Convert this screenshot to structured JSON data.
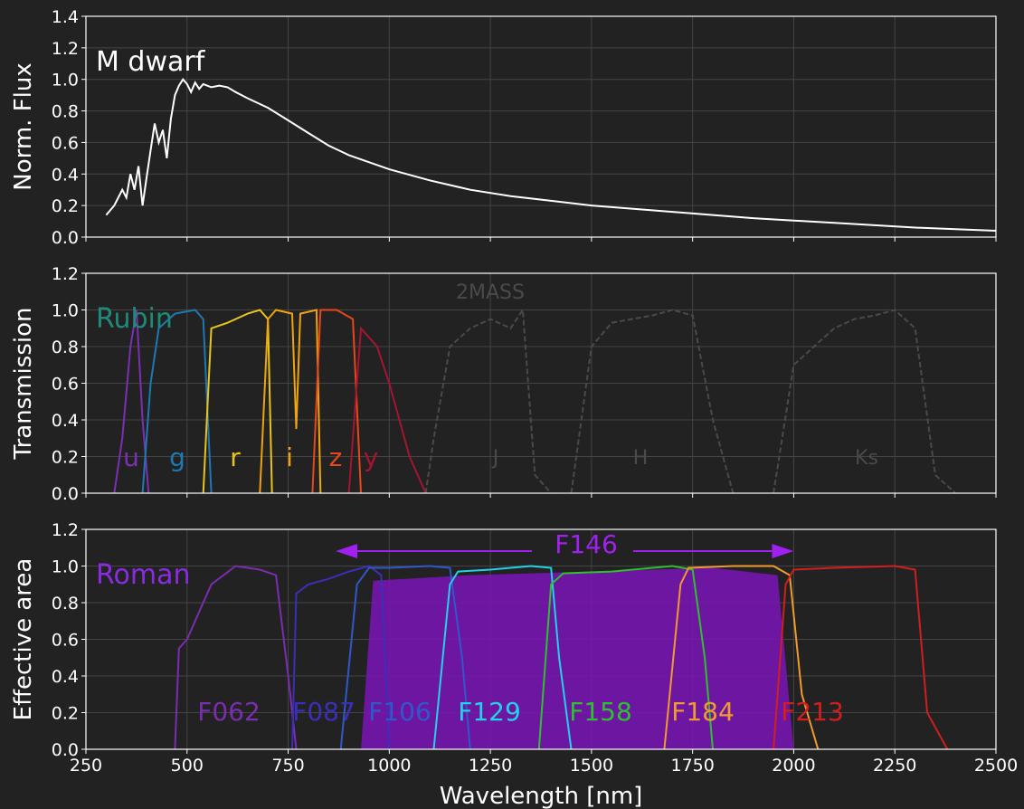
{
  "chart_data": [
    {
      "type": "line",
      "title": "M dwarf",
      "xlabel": "",
      "ylabel": "Norm. Flux",
      "xlim": [
        250,
        2500
      ],
      "ylim": [
        0,
        1.4
      ],
      "yticks": [
        "0.0",
        "0.2",
        "0.4",
        "0.6",
        "0.8",
        "1.0",
        "1.2",
        "1.4"
      ],
      "grid": true,
      "series": [
        {
          "color": "#ffffff",
          "x": [
            300,
            320,
            340,
            350,
            360,
            370,
            380,
            390,
            400,
            410,
            420,
            430,
            440,
            450,
            460,
            470,
            480,
            490,
            500,
            510,
            520,
            530,
            540,
            560,
            580,
            600,
            620,
            650,
            700,
            750,
            800,
            850,
            900,
            1000,
            1100,
            1200,
            1300,
            1400,
            1500,
            1600,
            1700,
            1800,
            1900,
            2000,
            2100,
            2200,
            2300,
            2400,
            2500
          ],
          "y": [
            0.14,
            0.2,
            0.3,
            0.25,
            0.4,
            0.3,
            0.45,
            0.2,
            0.38,
            0.55,
            0.72,
            0.6,
            0.68,
            0.5,
            0.75,
            0.9,
            0.96,
            1.0,
            0.97,
            0.92,
            0.98,
            0.94,
            0.97,
            0.95,
            0.96,
            0.95,
            0.92,
            0.88,
            0.82,
            0.74,
            0.66,
            0.58,
            0.52,
            0.43,
            0.36,
            0.3,
            0.26,
            0.23,
            0.2,
            0.18,
            0.16,
            0.14,
            0.12,
            0.105,
            0.09,
            0.075,
            0.06,
            0.05,
            0.04
          ]
        }
      ]
    },
    {
      "type": "line",
      "title": "Rubin",
      "ylabel": "Transmission",
      "xlim": [
        250,
        2500
      ],
      "ylim": [
        0,
        1.2
      ],
      "yticks": [
        "0.0",
        "0.2",
        "0.4",
        "0.6",
        "0.8",
        "1.0",
        "1.2"
      ],
      "grid": true,
      "annotation": "2MASS",
      "series": [
        {
          "name": "u",
          "color": "#7d2fb3",
          "x": [
            320,
            340,
            360,
            375,
            390,
            405
          ],
          "y": [
            0,
            0.3,
            0.8,
            1.0,
            0.4,
            0
          ]
        },
        {
          "name": "g",
          "color": "#1f78b4",
          "x": [
            390,
            410,
            430,
            470,
            520,
            540,
            560
          ],
          "y": [
            0,
            0.6,
            0.9,
            0.98,
            1.0,
            0.95,
            0
          ]
        },
        {
          "name": "r",
          "color": "#e8c51c",
          "x": [
            540,
            560,
            600,
            650,
            680,
            700,
            710
          ],
          "y": [
            0,
            0.9,
            0.93,
            0.98,
            1.0,
            0.95,
            0
          ]
        },
        {
          "name": "i",
          "color": "#f0a30a",
          "x": [
            680,
            700,
            720,
            760,
            770,
            780,
            820,
            830
          ],
          "y": [
            0,
            0.95,
            1.0,
            0.98,
            0.35,
            0.98,
            1.0,
            0
          ]
        },
        {
          "name": "z",
          "color": "#e8461b",
          "x": [
            810,
            830,
            870,
            910,
            930
          ],
          "y": [
            0,
            1.0,
            1.0,
            0.95,
            0
          ]
        },
        {
          "name": "y",
          "color": "#a51530",
          "x": [
            900,
            930,
            950,
            970,
            1000,
            1050,
            1090
          ],
          "y": [
            0,
            0.9,
            0.85,
            0.8,
            0.6,
            0.2,
            0
          ]
        },
        {
          "name": "J",
          "color": "#4a4a4a",
          "x": [
            1090,
            1110,
            1150,
            1200,
            1250,
            1300,
            1330,
            1360,
            1400
          ],
          "y": [
            0,
            0.3,
            0.8,
            0.9,
            0.95,
            0.9,
            1.0,
            0.1,
            0
          ]
        },
        {
          "name": "H",
          "color": "#4a4a4a",
          "x": [
            1450,
            1500,
            1550,
            1600,
            1650,
            1700,
            1750,
            1800,
            1850
          ],
          "y": [
            0,
            0.8,
            0.93,
            0.95,
            0.97,
            1.0,
            0.97,
            0.4,
            0
          ]
        },
        {
          "name": "Ks",
          "color": "#4a4a4a",
          "x": [
            1950,
            2000,
            2050,
            2100,
            2150,
            2200,
            2250,
            2300,
            2350,
            2400
          ],
          "y": [
            0,
            0.7,
            0.8,
            0.9,
            0.95,
            0.97,
            1.0,
            0.9,
            0.1,
            0
          ]
        }
      ]
    },
    {
      "type": "area",
      "title": "Roman",
      "xlabel": "Wavelength [nm]",
      "ylabel": "Effective area",
      "xlim": [
        250,
        2500
      ],
      "ylim": [
        0,
        1.2
      ],
      "xticks": [
        "250",
        "500",
        "750",
        "1000",
        "1250",
        "1500",
        "1750",
        "2000",
        "2250",
        "2500"
      ],
      "yticks": [
        "0.0",
        "0.2",
        "0.4",
        "0.6",
        "0.8",
        "1.0",
        "1.2"
      ],
      "grid": true,
      "wide_band": {
        "name": "F146",
        "color": "#7a14b8",
        "x": [
          930,
          960,
          1200,
          1500,
          1800,
          1960,
          2000
        ],
        "y": [
          0,
          0.92,
          0.95,
          0.97,
          0.99,
          0.95,
          0
        ],
        "arrow_range": [
          930,
          2000
        ]
      },
      "series": [
        {
          "name": "F062",
          "color": "#7a2db0",
          "x": [
            470,
            480,
            500,
            520,
            560,
            620,
            680,
            720,
            750,
            770
          ],
          "y": [
            0,
            0.55,
            0.6,
            0.7,
            0.9,
            1.0,
            0.98,
            0.95,
            0.4,
            0
          ]
        },
        {
          "name": "F087",
          "color": "#3b2fb8",
          "x": [
            760,
            770,
            800,
            850,
            900,
            950,
            980,
            1000
          ],
          "y": [
            0,
            0.85,
            0.9,
            0.93,
            0.97,
            1.0,
            0.95,
            0
          ]
        },
        {
          "name": "F106",
          "color": "#2f58c8",
          "x": [
            880,
            920,
            950,
            1000,
            1100,
            1150,
            1180,
            1200
          ],
          "y": [
            0,
            0.9,
            0.99,
            0.99,
            1.0,
            0.99,
            0.5,
            0
          ]
        },
        {
          "name": "F129",
          "color": "#21d2e8",
          "x": [
            1110,
            1150,
            1170,
            1250,
            1350,
            1400,
            1420,
            1450
          ],
          "y": [
            0,
            0.9,
            0.97,
            0.98,
            1.0,
            0.99,
            0.5,
            0
          ]
        },
        {
          "name": "F158",
          "color": "#2ec02e",
          "x": [
            1370,
            1400,
            1430,
            1550,
            1700,
            1750,
            1780,
            1800
          ],
          "y": [
            0,
            0.9,
            0.96,
            0.97,
            1.0,
            0.98,
            0.5,
            0
          ]
        },
        {
          "name": "F184",
          "color": "#f19a2e",
          "x": [
            1680,
            1720,
            1740,
            1850,
            1950,
            1990,
            2020,
            2060
          ],
          "y": [
            0,
            0.9,
            0.99,
            1.0,
            1.0,
            0.95,
            0.3,
            0
          ]
        },
        {
          "name": "F213",
          "color": "#d21e1e",
          "x": [
            1950,
            1980,
            2000,
            2100,
            2250,
            2300,
            2330,
            2380
          ],
          "y": [
            0,
            0.9,
            0.98,
            0.99,
            1.0,
            0.98,
            0.2,
            0
          ]
        }
      ]
    }
  ]
}
